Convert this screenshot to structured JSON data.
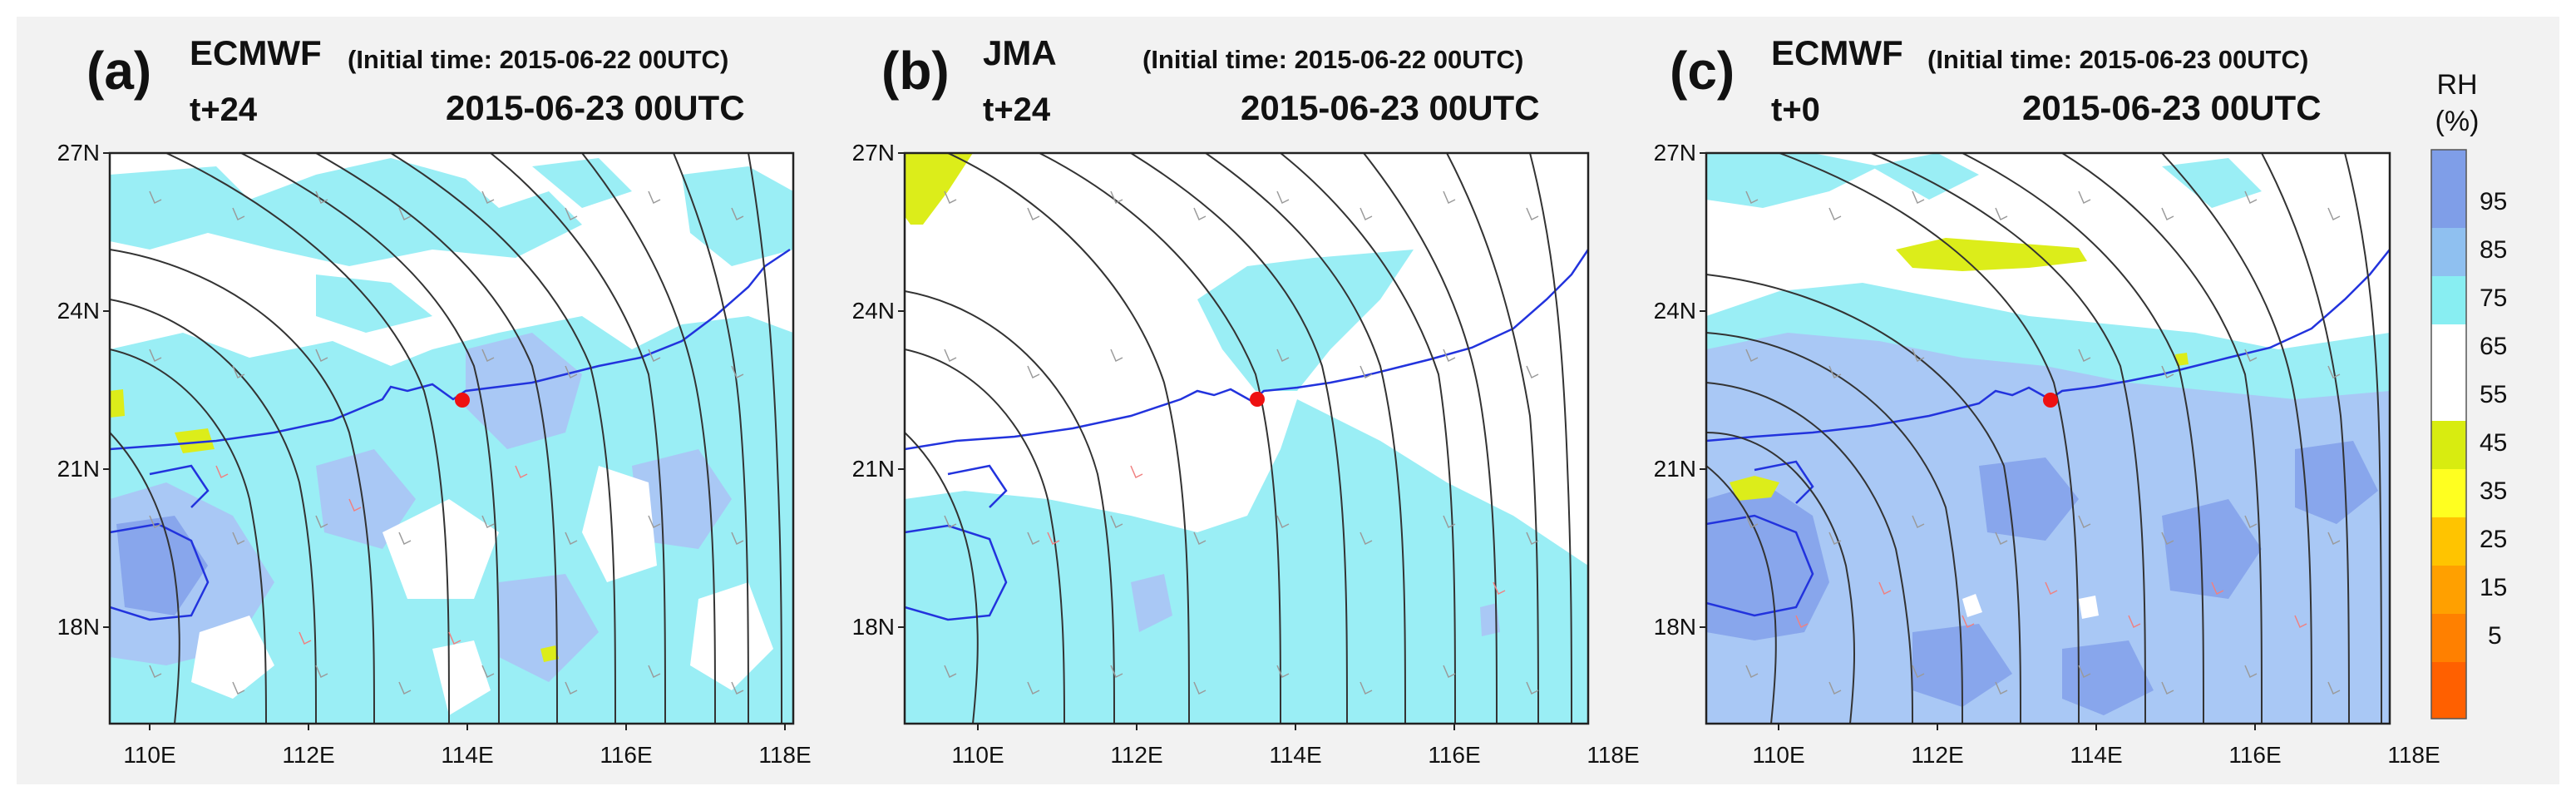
{
  "panels": [
    {
      "letter": "(a)",
      "model": "ECMWF",
      "initial": "(Initial time: 2015-06-22 00UTC)",
      "lead": "t+24",
      "valid": "2015-06-23  00UTC",
      "lat_labels": [
        "27N",
        "24N",
        "21N",
        "18N"
      ],
      "lon_labels": [
        "110E",
        "112E",
        "114E",
        "116E",
        "118E"
      ]
    },
    {
      "letter": "(b)",
      "model": "JMA",
      "initial": "(Initial time: 2015-06-22 00UTC)",
      "lead": "t+24",
      "valid": "2015-06-23  00UTC",
      "lat_labels": [
        "27N",
        "24N",
        "21N",
        "18N"
      ],
      "lon_labels": [
        "110E",
        "112E",
        "114E",
        "116E",
        "118E"
      ]
    },
    {
      "letter": "(c)",
      "model": "ECMWF",
      "initial": "(Initial time: 2015-06-23 00UTC)",
      "lead": "t+0",
      "valid": "2015-06-23  00UTC",
      "lat_labels": [
        "27N",
        "24N",
        "21N",
        "18N"
      ],
      "lon_labels": [
        "110E",
        "112E",
        "114E",
        "116E",
        "118E"
      ]
    }
  ],
  "colorbar": {
    "title_line1": "RH",
    "title_line2": "(%)",
    "labels": [
      "95",
      "85",
      "75",
      "65",
      "55",
      "45",
      "35",
      "25",
      "15",
      "5"
    ],
    "colors": [
      "#7f9ee8",
      "#8fc0f0",
      "#88eef2",
      "#ffffff",
      "#ffffff",
      "#d8ec10",
      "#ffff20",
      "#ffc400",
      "#ffa000",
      "#ff8000",
      "#ff6000"
    ]
  },
  "map_colors": {
    "rh_75": "#9aeef5",
    "rh_85": "#a9c8f5",
    "rh_95": "#88a6ec",
    "rh_50": "#dced1a",
    "coast": "#2233dd",
    "streamline": "#333333",
    "marker": "#ee1111"
  }
}
